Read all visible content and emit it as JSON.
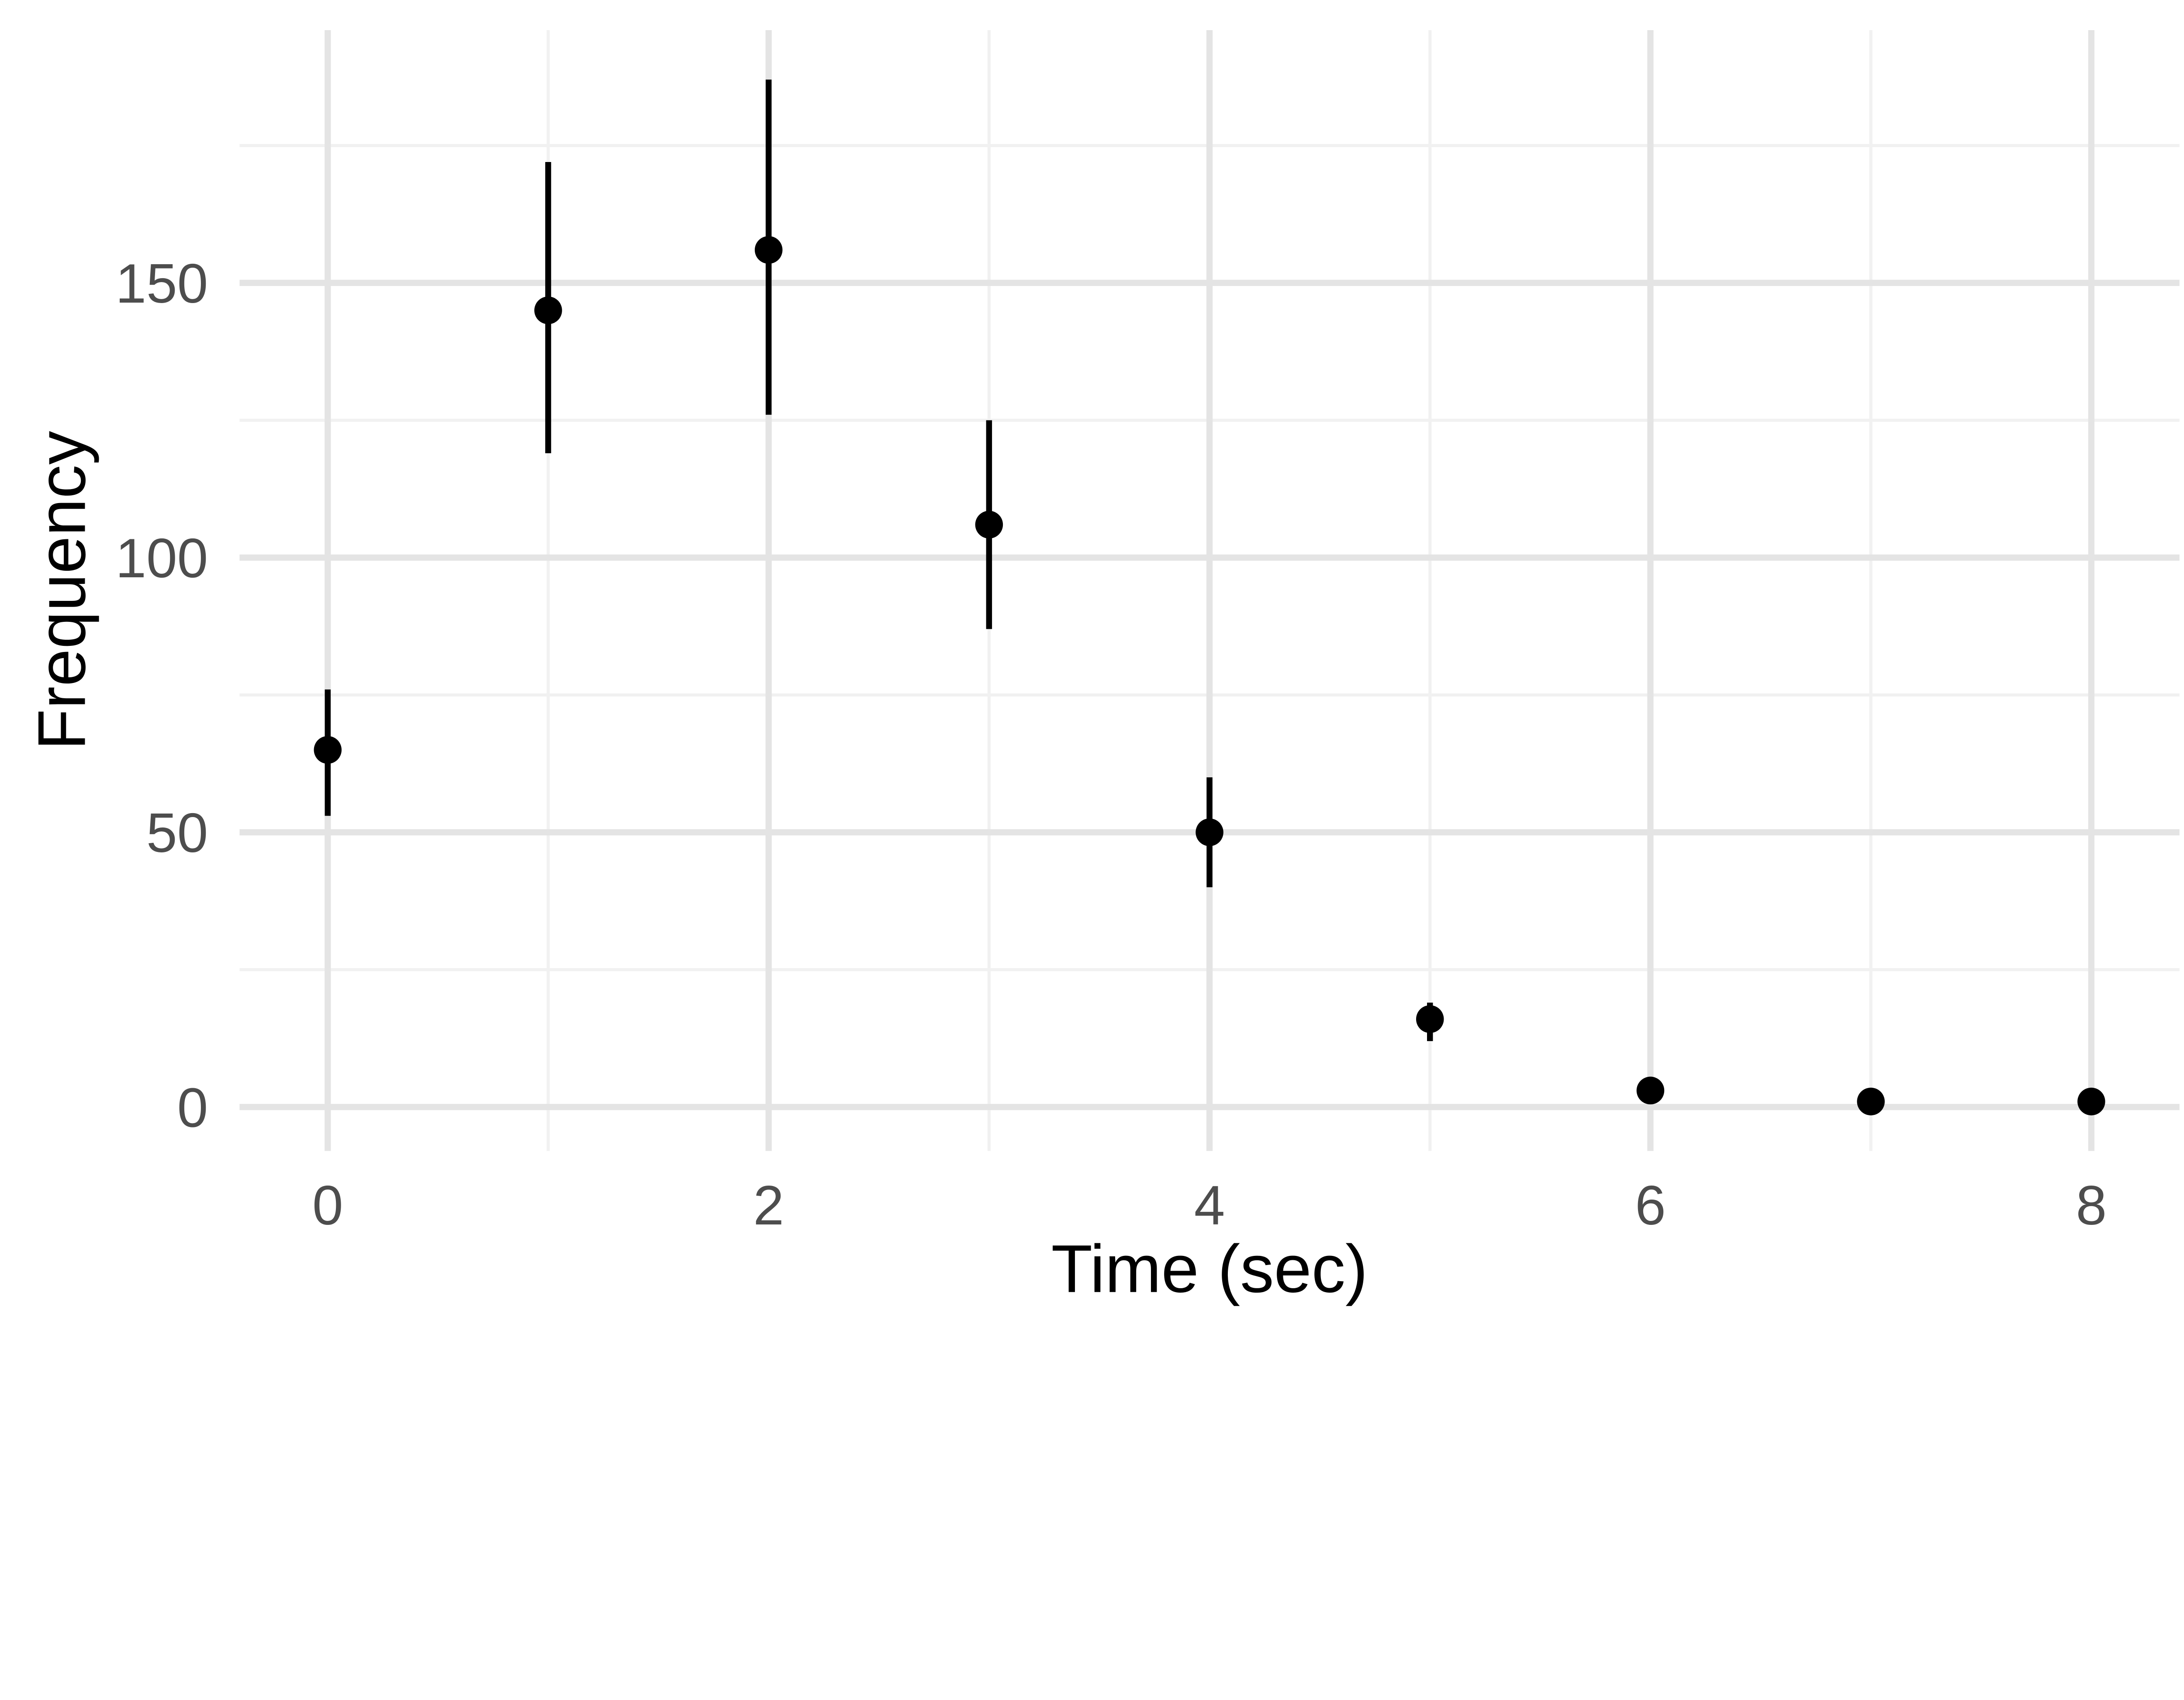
{
  "figure": {
    "background": "#FFFFFF"
  },
  "chart_data": {
    "type": "scatter",
    "subtype": "pointrange-with-error-bars",
    "title": "",
    "xlabel": "Time (sec)",
    "ylabel": "Frequency",
    "x": [
      0,
      1,
      2,
      3,
      4,
      5,
      6,
      7,
      8
    ],
    "series": [
      {
        "name": "frequency",
        "y": [
          65,
          145,
          156,
          106,
          50,
          16,
          3,
          1,
          1
        ],
        "ymin": [
          53,
          119,
          126,
          87,
          40,
          12,
          null,
          null,
          null
        ],
        "ymax": [
          76,
          172,
          187,
          125,
          60,
          19,
          null,
          null,
          null
        ]
      }
    ],
    "xlim": [
      -0.4,
      8.4
    ],
    "ylim": [
      -8,
      196
    ],
    "x_major_ticks": [
      0,
      2,
      4,
      6,
      8
    ],
    "x_tick_labels": [
      "0",
      "2",
      "4",
      "6",
      "8"
    ],
    "x_minor_ticks": [
      1,
      3,
      5,
      7
    ],
    "y_major_ticks": [
      0,
      50,
      100,
      150
    ],
    "y_tick_labels": [
      "0",
      "50",
      "100",
      "150"
    ],
    "y_minor_ticks": [
      25,
      75,
      125,
      175
    ],
    "grid": "major+minor",
    "legend": "none",
    "colors": {
      "point": "#000000",
      "error_bar": "#000000",
      "grid_major": "#E4E4E4",
      "grid_minor": "#F1F1F1",
      "tick_label": "#4D4D4D",
      "axis_title": "#000000",
      "background": "#FFFFFF"
    }
  }
}
